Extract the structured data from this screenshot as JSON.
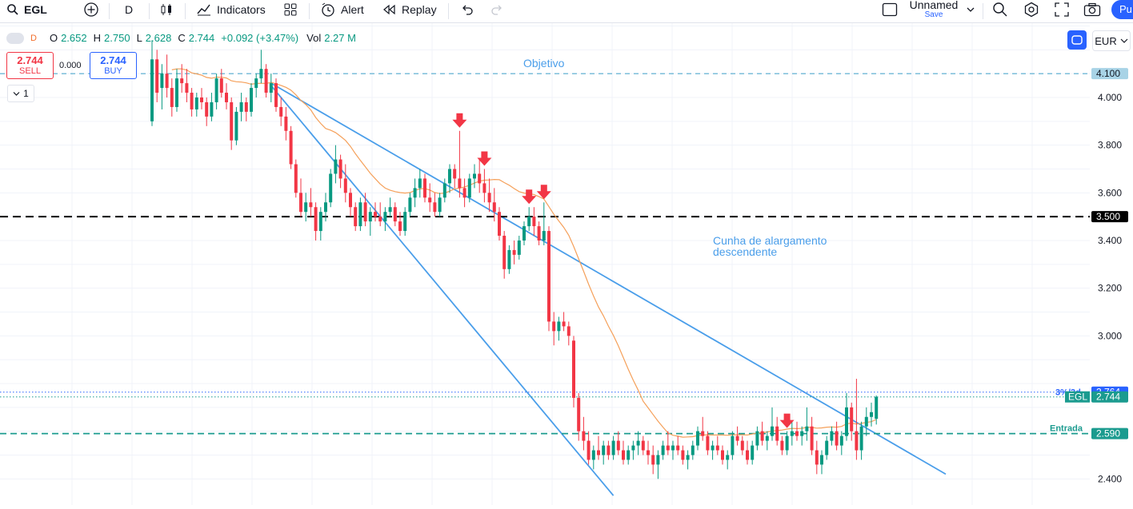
{
  "toolbar": {
    "symbol": "EGL",
    "interval": "D",
    "indicators_label": "Indicators",
    "alert_label": "Alert",
    "replay_label": "Replay",
    "layout_name": "Unnamed",
    "save_label": "Save",
    "publish_label": "Pu",
    "icons": [
      "search-icon",
      "add-symbol-icon",
      "candles-icon",
      "indicators-icon",
      "templates-icon",
      "alert-icon",
      "replay-icon",
      "undo-icon",
      "redo-icon",
      "fullscreen-icon",
      "screenshot-icon"
    ]
  },
  "legend": {
    "interval_badge": "D",
    "o_label": "O",
    "o_value": "2.652",
    "h_label": "H",
    "h_value": "2.750",
    "l_label": "L",
    "l_value": "2.628",
    "c_label": "C",
    "c_value": "2.744",
    "change": "+0.092 (+3.47%)",
    "vol_label": "Vol",
    "vol_value": "2.27 M"
  },
  "trade": {
    "sell_price": "2.744",
    "sell_label": "SELL",
    "spread": "0.000",
    "buy_price": "2.744",
    "buy_label": "BUY",
    "collapse_count": "1"
  },
  "currency": "EUR",
  "colors": {
    "up": "#089981",
    "down": "#f23645",
    "trend": "#4a9eea",
    "ma": "#f5a05a",
    "objetivo": "#6fb7d6",
    "entrada": "#1b9b8f",
    "resist": "#000000",
    "arrow": "#f23645"
  },
  "chart_data": {
    "type": "candlestick",
    "y_ticks": [
      {
        "value": 4.0,
        "label": "4.000"
      },
      {
        "value": 3.8,
        "label": "3.800"
      },
      {
        "value": 3.6,
        "label": "3.600"
      },
      {
        "value": 3.4,
        "label": "3.400"
      },
      {
        "value": 3.2,
        "label": "3.200"
      },
      {
        "value": 3.0,
        "label": "3.000"
      },
      {
        "value": 2.4,
        "label": "2.400"
      }
    ],
    "ylim": [
      2.33,
      4.35
    ],
    "bars": 160,
    "levels": [
      {
        "name": "objetivo",
        "value": 4.1,
        "label": "Objetivo",
        "badge": "4.100",
        "style": "dashed"
      },
      {
        "name": "resistance",
        "value": 3.5,
        "label": "",
        "badge": "3.500",
        "style": "dashed-bold"
      },
      {
        "name": "target-3d",
        "value": 2.764,
        "label": "3%/3d",
        "badge": "2.764",
        "style": "dotted"
      },
      {
        "name": "last-price",
        "value": 2.744,
        "label": "EGL",
        "badge": "2.744",
        "style": "dotted"
      },
      {
        "name": "entrada",
        "value": 2.59,
        "label": "Entrada",
        "badge": "2.590",
        "style": "dashed"
      }
    ],
    "annotation": "Cunha de alargamento descendente",
    "annotation_lines": [
      "Cunha de alargamento",
      "descendente"
    ],
    "trendlines": [
      {
        "name": "upper",
        "from": [
          24,
          4.06
        ],
        "to": [
          160,
          2.42
        ]
      },
      {
        "name": "lower",
        "from": [
          24,
          4.05
        ],
        "to": [
          93,
          2.33
        ]
      }
    ],
    "arrow_bars": [
      62,
      67,
      76,
      79,
      128
    ],
    "ohlc": [
      [
        3.9,
        4.24,
        3.88,
        4.16
      ],
      [
        4.16,
        4.2,
        3.98,
        4.02
      ],
      [
        4.04,
        4.14,
        3.95,
        4.1
      ],
      [
        4.1,
        4.18,
        4.0,
        4.04
      ],
      [
        4.04,
        4.08,
        3.92,
        3.96
      ],
      [
        3.96,
        4.12,
        3.94,
        4.08
      ],
      [
        4.08,
        4.14,
        4.02,
        4.06
      ],
      [
        4.06,
        4.12,
        3.98,
        4.02
      ],
      [
        4.02,
        4.04,
        3.92,
        3.95
      ],
      [
        3.95,
        4.02,
        3.92,
        4.0
      ],
      [
        4.0,
        4.04,
        3.95,
        3.98
      ],
      [
        3.98,
        4.0,
        3.88,
        3.92
      ],
      [
        3.92,
        4.02,
        3.9,
        3.98
      ],
      [
        3.98,
        4.1,
        3.95,
        4.08
      ],
      [
        4.08,
        4.12,
        4.0,
        4.02
      ],
      [
        4.02,
        4.06,
        3.95,
        3.98
      ],
      [
        3.98,
        4.0,
        3.78,
        3.82
      ],
      [
        3.82,
        3.96,
        3.8,
        3.94
      ],
      [
        3.94,
        4.02,
        3.9,
        3.98
      ],
      [
        3.98,
        4.0,
        3.9,
        3.94
      ],
      [
        3.94,
        4.06,
        3.92,
        4.04
      ],
      [
        4.04,
        4.1,
        4.0,
        4.08
      ],
      [
        4.08,
        4.2,
        4.06,
        4.12
      ],
      [
        4.12,
        4.14,
        4.0,
        4.02
      ],
      [
        4.02,
        4.1,
        3.98,
        4.06
      ],
      [
        4.06,
        4.08,
        3.94,
        3.96
      ],
      [
        3.96,
        4.0,
        3.88,
        3.92
      ],
      [
        3.92,
        3.96,
        3.82,
        3.86
      ],
      [
        3.86,
        3.88,
        3.7,
        3.72
      ],
      [
        3.72,
        3.74,
        3.58,
        3.6
      ],
      [
        3.6,
        3.66,
        3.5,
        3.52
      ],
      [
        3.52,
        3.6,
        3.48,
        3.56
      ],
      [
        3.56,
        3.62,
        3.5,
        3.54
      ],
      [
        3.54,
        3.56,
        3.4,
        3.44
      ],
      [
        3.44,
        3.54,
        3.4,
        3.52
      ],
      [
        3.52,
        3.6,
        3.48,
        3.56
      ],
      [
        3.56,
        3.7,
        3.54,
        3.68
      ],
      [
        3.68,
        3.8,
        3.64,
        3.74
      ],
      [
        3.74,
        3.76,
        3.62,
        3.66
      ],
      [
        3.66,
        3.72,
        3.56,
        3.6
      ],
      [
        3.6,
        3.62,
        3.5,
        3.54
      ],
      [
        3.54,
        3.56,
        3.44,
        3.46
      ],
      [
        3.46,
        3.58,
        3.44,
        3.56
      ],
      [
        3.56,
        3.6,
        3.46,
        3.48
      ],
      [
        3.48,
        3.54,
        3.42,
        3.52
      ],
      [
        3.52,
        3.56,
        3.48,
        3.5
      ],
      [
        3.5,
        3.56,
        3.46,
        3.48
      ],
      [
        3.48,
        3.54,
        3.44,
        3.52
      ],
      [
        3.52,
        3.58,
        3.5,
        3.54
      ],
      [
        3.54,
        3.56,
        3.46,
        3.48
      ],
      [
        3.48,
        3.52,
        3.42,
        3.44
      ],
      [
        3.44,
        3.54,
        3.42,
        3.52
      ],
      [
        3.52,
        3.6,
        3.5,
        3.58
      ],
      [
        3.58,
        3.66,
        3.54,
        3.62
      ],
      [
        3.62,
        3.7,
        3.58,
        3.66
      ],
      [
        3.66,
        3.68,
        3.56,
        3.58
      ],
      [
        3.58,
        3.64,
        3.52,
        3.56
      ],
      [
        3.56,
        3.6,
        3.5,
        3.52
      ],
      [
        3.52,
        3.6,
        3.5,
        3.58
      ],
      [
        3.58,
        3.66,
        3.56,
        3.64
      ],
      [
        3.64,
        3.72,
        3.6,
        3.7
      ],
      [
        3.7,
        3.72,
        3.62,
        3.66
      ],
      [
        3.66,
        3.86,
        3.58,
        3.62
      ],
      [
        3.62,
        3.66,
        3.54,
        3.58
      ],
      [
        3.58,
        3.68,
        3.56,
        3.66
      ],
      [
        3.66,
        3.72,
        3.62,
        3.68
      ],
      [
        3.68,
        3.74,
        3.6,
        3.64
      ],
      [
        3.64,
        3.7,
        3.56,
        3.6
      ],
      [
        3.6,
        3.66,
        3.52,
        3.56
      ],
      [
        3.56,
        3.62,
        3.48,
        3.52
      ],
      [
        3.52,
        3.54,
        3.4,
        3.42
      ],
      [
        3.42,
        3.44,
        3.24,
        3.28
      ],
      [
        3.28,
        3.38,
        3.26,
        3.36
      ],
      [
        3.36,
        3.4,
        3.3,
        3.34
      ],
      [
        3.34,
        3.42,
        3.32,
        3.4
      ],
      [
        3.4,
        3.48,
        3.38,
        3.46
      ],
      [
        3.46,
        3.54,
        3.44,
        3.5
      ],
      [
        3.5,
        3.54,
        3.42,
        3.46
      ],
      [
        3.46,
        3.48,
        3.38,
        3.4
      ],
      [
        3.4,
        3.56,
        3.38,
        3.44
      ],
      [
        3.44,
        3.46,
        3.02,
        3.06
      ],
      [
        3.06,
        3.1,
        2.96,
        3.02
      ],
      [
        3.02,
        3.08,
        2.98,
        3.06
      ],
      [
        3.06,
        3.1,
        3.02,
        3.04
      ],
      [
        3.04,
        3.06,
        2.96,
        3.0
      ],
      [
        2.98,
        3.0,
        2.7,
        2.74
      ],
      [
        2.74,
        2.76,
        2.56,
        2.6
      ],
      [
        2.6,
        2.66,
        2.52,
        2.56
      ],
      [
        2.56,
        2.6,
        2.46,
        2.48
      ],
      [
        2.48,
        2.54,
        2.44,
        2.52
      ],
      [
        2.52,
        2.58,
        2.48,
        2.5
      ],
      [
        2.5,
        2.56,
        2.46,
        2.54
      ],
      [
        2.54,
        2.56,
        2.48,
        2.5
      ],
      [
        2.5,
        2.58,
        2.48,
        2.56
      ],
      [
        2.56,
        2.6,
        2.5,
        2.52
      ],
      [
        2.52,
        2.56,
        2.46,
        2.48
      ],
      [
        2.48,
        2.54,
        2.46,
        2.52
      ],
      [
        2.52,
        2.56,
        2.48,
        2.54
      ],
      [
        2.54,
        2.6,
        2.5,
        2.56
      ],
      [
        2.56,
        2.58,
        2.5,
        2.52
      ],
      [
        2.52,
        2.56,
        2.46,
        2.5
      ],
      [
        2.5,
        2.54,
        2.42,
        2.46
      ],
      [
        2.46,
        2.52,
        2.4,
        2.5
      ],
      [
        2.5,
        2.56,
        2.48,
        2.54
      ],
      [
        2.54,
        2.6,
        2.5,
        2.52
      ],
      [
        2.52,
        2.56,
        2.48,
        2.54
      ],
      [
        2.54,
        2.58,
        2.5,
        2.52
      ],
      [
        2.52,
        2.54,
        2.46,
        2.48
      ],
      [
        2.48,
        2.52,
        2.44,
        2.5
      ],
      [
        2.5,
        2.56,
        2.48,
        2.54
      ],
      [
        2.54,
        2.62,
        2.52,
        2.6
      ],
      [
        2.6,
        2.66,
        2.56,
        2.58
      ],
      [
        2.58,
        2.6,
        2.5,
        2.52
      ],
      [
        2.52,
        2.56,
        2.48,
        2.54
      ],
      [
        2.54,
        2.58,
        2.5,
        2.52
      ],
      [
        2.52,
        2.54,
        2.46,
        2.48
      ],
      [
        2.48,
        2.52,
        2.44,
        2.5
      ],
      [
        2.5,
        2.6,
        2.48,
        2.58
      ],
      [
        2.58,
        2.62,
        2.54,
        2.56
      ],
      [
        2.56,
        2.58,
        2.5,
        2.52
      ],
      [
        2.52,
        2.56,
        2.46,
        2.48
      ],
      [
        2.48,
        2.56,
        2.46,
        2.54
      ],
      [
        2.54,
        2.62,
        2.52,
        2.6
      ],
      [
        2.6,
        2.64,
        2.54,
        2.56
      ],
      [
        2.56,
        2.6,
        2.52,
        2.58
      ],
      [
        2.58,
        2.7,
        2.56,
        2.62
      ],
      [
        2.62,
        2.66,
        2.54,
        2.56
      ],
      [
        2.56,
        2.58,
        2.5,
        2.52
      ],
      [
        2.52,
        2.6,
        2.5,
        2.58
      ],
      [
        2.58,
        2.64,
        2.54,
        2.6
      ],
      [
        2.6,
        2.64,
        2.56,
        2.58
      ],
      [
        2.58,
        2.62,
        2.54,
        2.6
      ],
      [
        2.6,
        2.7,
        2.56,
        2.62
      ],
      [
        2.62,
        2.66,
        2.5,
        2.52
      ],
      [
        2.52,
        2.56,
        2.42,
        2.46
      ],
      [
        2.46,
        2.52,
        2.42,
        2.5
      ],
      [
        2.5,
        2.58,
        2.48,
        2.56
      ],
      [
        2.56,
        2.62,
        2.54,
        2.6
      ],
      [
        2.6,
        2.64,
        2.52,
        2.54
      ],
      [
        2.54,
        2.6,
        2.5,
        2.58
      ],
      [
        2.58,
        2.76,
        2.56,
        2.7
      ],
      [
        2.7,
        2.72,
        2.56,
        2.6
      ],
      [
        2.6,
        2.82,
        2.48,
        2.52
      ],
      [
        2.52,
        2.64,
        2.48,
        2.62
      ],
      [
        2.62,
        2.7,
        2.58,
        2.66
      ],
      [
        2.66,
        2.72,
        2.62,
        2.68
      ],
      [
        2.652,
        2.75,
        2.628,
        2.744
      ]
    ]
  }
}
